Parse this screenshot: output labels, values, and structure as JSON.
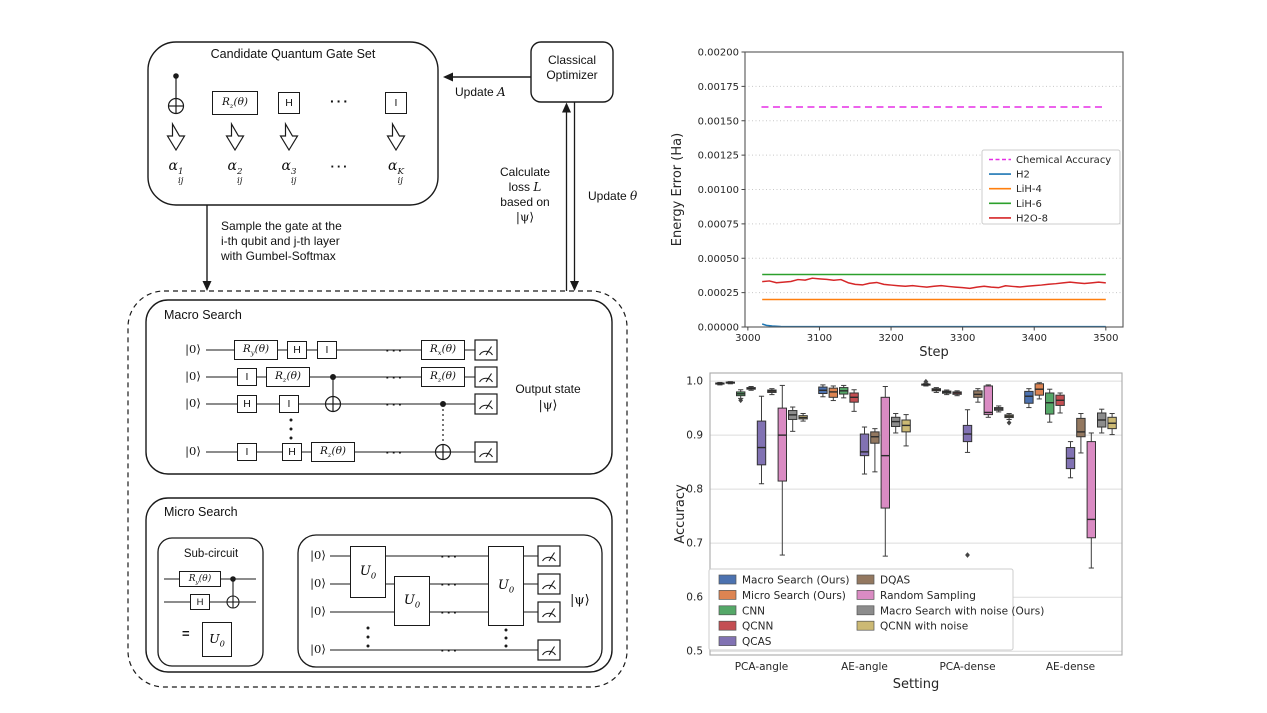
{
  "diagram": {
    "dots": "···",
    "candidate": {
      "title": "Candidate Quantum Gate Set",
      "gates": [
        "CNOT",
        "R_z(θ)",
        "H",
        "···",
        "I"
      ],
      "alphas": [
        "α_ij^1",
        "α_ij^2",
        "α_ij^3",
        "···",
        "α_ij^K"
      ]
    },
    "optimizer": {
      "line1": "Classical",
      "line2": "Optimizer"
    },
    "labels": {
      "update_A_text": "Update ",
      "update_A_symbol": "A",
      "calc_line1": "Calculate",
      "calc_line2_prefix": "loss ",
      "calc_line2_symbol": "L",
      "calc_line3": "based on",
      "calc_line4": "|ψ⟩",
      "update_theta_text": "Update ",
      "update_theta_symbol": "θ",
      "sample_line1": "Sample the gate at the",
      "sample_line2": "i-th qubit and j-th layer",
      "sample_line3": "with Gumbel-Softmax"
    },
    "macro": {
      "title": "Macro Search",
      "ket": "|0⟩",
      "wires": [
        [
          "R_y(θ)",
          "H",
          "I",
          "R_x(θ)"
        ],
        [
          "I",
          "R_z(θ)",
          "R_z(θ)"
        ],
        [
          "H",
          "I"
        ],
        [
          "I",
          "H",
          "R_z(θ)"
        ]
      ],
      "output_line1": "Output state",
      "output_line2": "|ψ⟩"
    },
    "micro": {
      "title": "Micro Search",
      "sub_title": "Sub-circuit",
      "gate_ry": "R_y(θ)",
      "gate_h": "H",
      "equals": "=",
      "u0": "U_0",
      "ket": "|0⟩",
      "psi": "|ψ⟩"
    }
  },
  "chart_data": [
    {
      "type": "line",
      "title": "",
      "xlabel": "Step",
      "ylabel": "Energy Error (Ha)",
      "xlim": [
        2996,
        3524
      ],
      "ylim": [
        0,
        0.002
      ],
      "xticks": [
        3000,
        3100,
        3200,
        3300,
        3400,
        3500
      ],
      "ytick_labels": [
        "0.00000",
        "0.00025",
        "0.00050",
        "0.00075",
        "0.00100",
        "0.00125",
        "0.00150",
        "0.00175",
        "0.00200"
      ],
      "grid": "horizontal-dotted",
      "legend_pos": "center-right",
      "series": [
        {
          "name": "Chemical Accuracy",
          "color": "#e52ee5",
          "style": "dashed",
          "x": [
            3019,
            3496
          ],
          "y": [
            0.0016,
            0.0016
          ]
        },
        {
          "name": "H2",
          "color": "#1f77b4",
          "style": "solid",
          "x": [
            3020,
            3026,
            3034,
            3046,
            3070,
            3120,
            3200,
            3300,
            3400,
            3500
          ],
          "y": [
            2.2e-05,
            1.2e-05,
            7e-06,
            4e-06,
            3e-06,
            3e-06,
            3e-06,
            3e-06,
            3e-06,
            3e-06
          ]
        },
        {
          "name": "LiH-4",
          "color": "#ff7f0e",
          "style": "solid",
          "x": [
            3020,
            3500
          ],
          "y": [
            0.0002,
            0.0002
          ]
        },
        {
          "name": "LiH-6",
          "color": "#2ca02c",
          "style": "solid",
          "x": [
            3020,
            3500
          ],
          "y": [
            0.000382,
            0.000382
          ]
        },
        {
          "name": "H2O-8",
          "color": "#d62728",
          "style": "solid",
          "x": [
            3020,
            3030,
            3040,
            3050,
            3060,
            3070,
            3080,
            3090,
            3100,
            3110,
            3120,
            3130,
            3140,
            3150,
            3160,
            3170,
            3180,
            3190,
            3200,
            3210,
            3220,
            3230,
            3240,
            3250,
            3260,
            3270,
            3280,
            3290,
            3300,
            3310,
            3320,
            3330,
            3340,
            3350,
            3360,
            3370,
            3380,
            3390,
            3400,
            3410,
            3420,
            3430,
            3440,
            3450,
            3460,
            3470,
            3480,
            3490,
            3500
          ],
          "y": [
            0.00033,
            0.000335,
            0.000322,
            0.000326,
            0.000331,
            0.000345,
            0.000341,
            0.000355,
            0.00035,
            0.000346,
            0.00034,
            0.000345,
            0.000322,
            0.00031,
            0.000306,
            0.000318,
            0.000324,
            0.00031,
            0.000305,
            0.0003,
            0.000296,
            0.000301,
            0.000295,
            0.00029,
            0.000296,
            0.000301,
            0.000295,
            0.00029,
            0.000286,
            0.000281,
            0.00029,
            0.000296,
            0.00029,
            0.000286,
            0.0003,
            0.000295,
            0.000291,
            0.000296,
            0.000301,
            0.000305,
            0.000311,
            0.000315,
            0.000321,
            0.000326,
            0.000321,
            0.000316,
            0.000321,
            0.000326,
            0.000321
          ]
        }
      ]
    },
    {
      "type": "boxplot",
      "title": "",
      "xlabel": "Setting",
      "ylabel": "Accuracy",
      "categories": [
        "PCA-angle",
        "AE-angle",
        "PCA-dense",
        "AE-dense"
      ],
      "ylim": [
        0.493,
        1.015
      ],
      "yticks": [
        0.5,
        0.6,
        0.7,
        0.8,
        0.9,
        1.0
      ],
      "grid": "horizontal-solid",
      "legend_pos": "lower-left",
      "series": [
        {
          "name": "Macro Search (Ours)",
          "color": "#4C72B0",
          "boxes": [
            [
              0.993,
              0.9945,
              0.9955,
              0.9965,
              0.9975
            ],
            [
              0.971,
              0.977,
              0.983,
              0.989,
              0.993
            ],
            [
              0.991,
              0.9925,
              0.9935,
              0.9945,
              0.996
            ],
            [
              0.951,
              0.959,
              0.972,
              0.981,
              0.986
            ]
          ],
          "fliers": [
            [],
            [],
            [
              0.999
            ],
            []
          ]
        },
        {
          "name": "Micro Search (Ours)",
          "color": "#DD8452",
          "boxes": [
            [
              0.995,
              0.9965,
              0.9975,
              0.998,
              0.999
            ],
            [
              0.964,
              0.97,
              0.98,
              0.987,
              0.991
            ],
            [
              0.979,
              0.982,
              0.984,
              0.986,
              0.988
            ],
            [
              0.967,
              0.974,
              0.985,
              0.995,
              0.997
            ]
          ],
          "fliers": [
            [],
            [],
            [],
            []
          ]
        },
        {
          "name": "CNN",
          "color": "#55A868",
          "boxes": [
            [
              0.968,
              0.973,
              0.9765,
              0.98,
              0.984
            ],
            [
              0.969,
              0.976,
              0.982,
              0.988,
              0.992
            ],
            [
              0.975,
              0.9775,
              0.9795,
              0.9815,
              0.9835
            ],
            [
              0.924,
              0.939,
              0.96,
              0.978,
              0.985
            ]
          ],
          "fliers": [
            [
              0.9645
            ],
            [],
            [],
            []
          ]
        },
        {
          "name": "QCNN",
          "color": "#C44E52",
          "boxes": [
            [
              0.983,
              0.985,
              0.9865,
              0.988,
              0.99
            ],
            [
              0.944,
              0.961,
              0.97,
              0.978,
              0.984
            ],
            [
              0.973,
              0.9755,
              0.978,
              0.98,
              0.982
            ],
            [
              0.941,
              0.955,
              0.9645,
              0.974,
              0.978
            ]
          ],
          "fliers": [
            [],
            [],
            [],
            []
          ]
        },
        {
          "name": "QCAS",
          "color": "#8172B3",
          "boxes": [
            [
              0.81,
              0.845,
              0.877,
              0.926,
              0.972
            ],
            [
              0.828,
              0.862,
              0.869,
              0.902,
              0.915
            ],
            [
              0.868,
              0.888,
              0.902,
              0.918,
              0.947
            ],
            [
              0.821,
              0.838,
              0.857,
              0.877,
              0.888
            ]
          ],
          "fliers": [
            [],
            [],
            [
              0.678
            ],
            []
          ]
        },
        {
          "name": "DQAS",
          "color": "#937860",
          "boxes": [
            [
              0.975,
              0.979,
              0.9815,
              0.9835,
              0.986
            ],
            [
              0.832,
              0.885,
              0.897,
              0.906,
              0.912
            ],
            [
              0.961,
              0.97,
              0.9755,
              0.982,
              0.986
            ],
            [
              0.867,
              0.897,
              0.906,
              0.931,
              0.94
            ]
          ],
          "fliers": [
            [],
            [],
            [],
            []
          ]
        },
        {
          "name": "Random Sampling",
          "color": "#DA8BC3",
          "boxes": [
            [
              0.678,
              0.815,
              0.9,
              0.95,
              0.992
            ],
            [
              0.676,
              0.765,
              0.862,
              0.97,
              0.99
            ],
            [
              0.933,
              0.938,
              0.942,
              0.991,
              0.993
            ],
            [
              0.654,
              0.71,
              0.744,
              0.888,
              0.904
            ]
          ],
          "fliers": [
            [],
            [],
            [],
            []
          ]
        },
        {
          "name": "Macro Search with noise (Ours)",
          "color": "#8C8C8C",
          "boxes": [
            [
              0.907,
              0.929,
              0.9375,
              0.9455,
              0.952
            ],
            [
              0.904,
              0.916,
              0.925,
              0.933,
              0.94
            ],
            [
              0.943,
              0.946,
              0.9485,
              0.951,
              0.954
            ],
            [
              0.904,
              0.915,
              0.928,
              0.941,
              0.948
            ]
          ],
          "fliers": [
            [],
            [],
            [],
            []
          ]
        },
        {
          "name": "QCNN with noise",
          "color": "#CCB974",
          "boxes": [
            [
              0.926,
              0.93,
              0.9325,
              0.936,
              0.94
            ],
            [
              0.88,
              0.906,
              0.918,
              0.928,
              0.938
            ],
            [
              0.929,
              0.9325,
              0.935,
              0.9375,
              0.94
            ],
            [
              0.901,
              0.912,
              0.922,
              0.933,
              0.94
            ]
          ],
          "fliers": [
            [],
            [],
            [
              0.923
            ],
            []
          ]
        }
      ]
    }
  ]
}
